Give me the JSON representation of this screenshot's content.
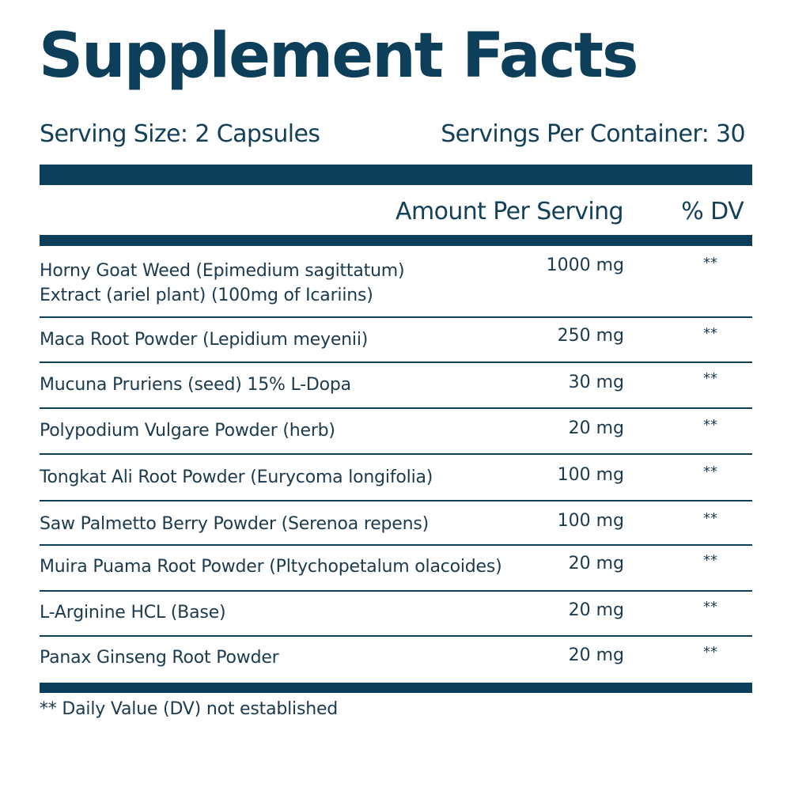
{
  "title": "Supplement Facts",
  "serving_size": "Serving Size:  2 Capsules",
  "servings_per_container": "Servings Per Container: 30",
  "header": {
    "amount": "Amount Per Serving",
    "dv": "% DV"
  },
  "rows": [
    {
      "name": [
        "Horny Goat Weed (Epimedium sagittatum)",
        "Extract (ariel plant) (100mg of Icariins)"
      ],
      "amount": "1000 mg",
      "dv": "**"
    },
    {
      "name": [
        "Maca Root Powder (Lepidium meyenii)"
      ],
      "amount": "250 mg",
      "dv": "**"
    },
    {
      "name": [
        "Mucuna Pruriens (seed) 15% L-Dopa"
      ],
      "amount": "30 mg",
      "dv": "**"
    },
    {
      "name": [
        "Polypodium Vulgare Powder (herb)"
      ],
      "amount": "20 mg",
      "dv": "**"
    },
    {
      "name": [
        "Tongkat Ali Root Powder (Eurycoma longifolia)"
      ],
      "amount": "100 mg",
      "dv": "**"
    },
    {
      "name": [
        "Saw Palmetto Berry Powder (Serenoa repens)"
      ],
      "amount": "100 mg",
      "dv": "**"
    },
    {
      "name": [
        "Muira Puama Root Powder (Pltychopetalum olacoides)"
      ],
      "amount": "20 mg",
      "dv": "**"
    },
    {
      "name": [
        "L-Arginine HCL (Base)"
      ],
      "amount": "20 mg",
      "dv": "**"
    },
    {
      "name": [
        "Panax Ginseng Root Powder"
      ],
      "amount": "20 mg",
      "dv": "**"
    }
  ],
  "footnote": "** Daily Value (DV) not established",
  "colors": {
    "primary": "#0d3e5a",
    "text": "#1b3a4e",
    "background": "#ffffff"
  }
}
